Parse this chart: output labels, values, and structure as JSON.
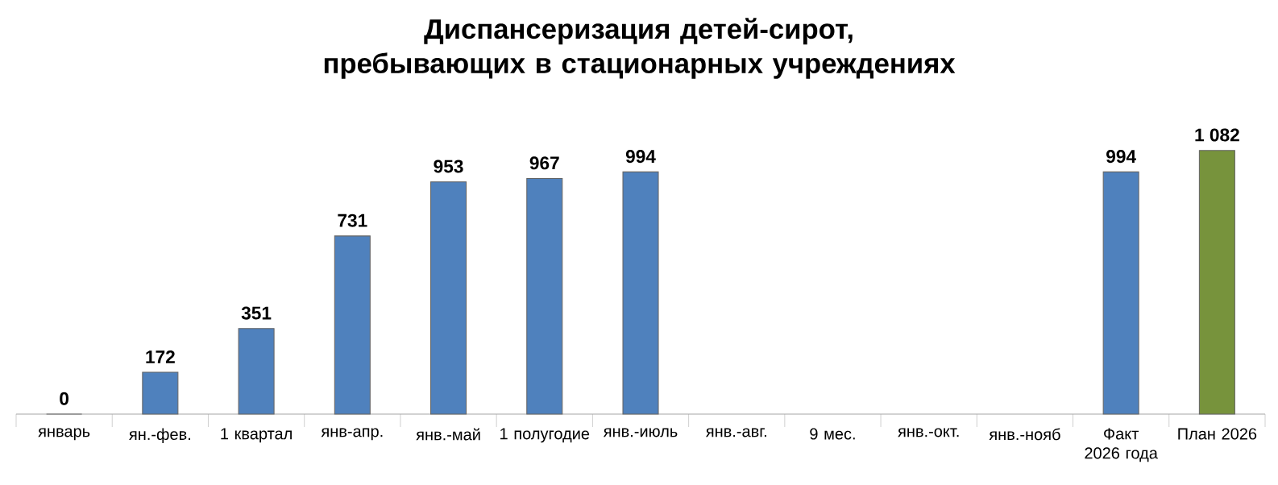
{
  "chart_data": {
    "type": "bar",
    "title": "Диспансеризация детей-сирот, пребывающих в стационарных учреждениях",
    "categories": [
      "январь",
      "ян.-фев.",
      "1 квартал",
      "янв-апр.",
      "янв.-май",
      "1 полугодие",
      "янв.-июль",
      "янв.-авг.",
      "9 мес.",
      "янв.-окт.",
      "янв.-нояб",
      "Факт 2026 года",
      "План 2026"
    ],
    "values": [
      0,
      172,
      351,
      731,
      953,
      967,
      994,
      null,
      null,
      null,
      null,
      994,
      1082
    ],
    "value_labels": [
      "0",
      "172",
      "351",
      "731",
      "953",
      "967",
      "994",
      null,
      null,
      null,
      null,
      "994",
      "1 082"
    ],
    "colors": [
      "#4f81bd",
      "#4f81bd",
      "#4f81bd",
      "#4f81bd",
      "#4f81bd",
      "#4f81bd",
      "#4f81bd",
      "#4f81bd",
      "#4f81bd",
      "#4f81bd",
      "#4f81bd",
      "#4f81bd",
      "#77933c"
    ]
  }
}
